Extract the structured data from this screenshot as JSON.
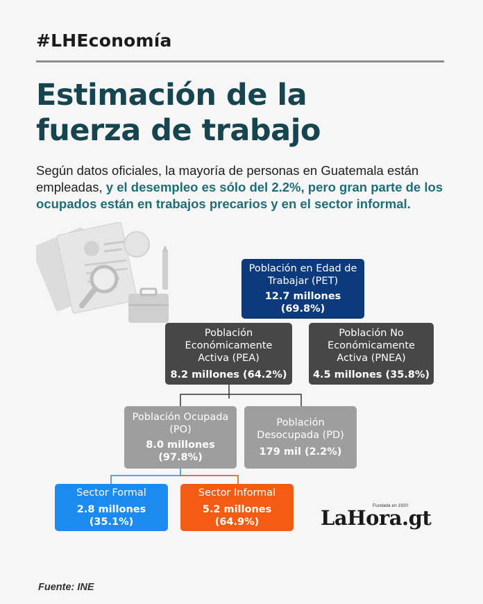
{
  "header": {
    "hashtag": "#LHEconomía",
    "title_line1": "Estimación de la",
    "title_line2": "fuerza de trabajo"
  },
  "intro": {
    "text_plain": "Según datos oficiales, la mayoría de personas en Guatemala están empleadas,",
    "text_highlight": "y el desempleo es sólo del 2.2%, pero gran parte de los ocupados están en trabajos precarios y en el sector informal."
  },
  "colors": {
    "title": "#16444f",
    "highlight": "#1e6e7a",
    "pet": "#0d3a7d",
    "pea": "#474747",
    "po": "#9e9e9e",
    "formal": "#1b8bef",
    "informal": "#f45c14"
  },
  "diagram": {
    "pet": {
      "label_1": "Población en Edad de",
      "label_2": "Trabajar (PET)",
      "value_1": "12.7 millones",
      "value_2": "(69.8%)"
    },
    "pea": {
      "label_1": "Población",
      "label_2": "Económicamente",
      "label_3": "Activa (PEA)",
      "value_1": "8.2 millones (64.2%)"
    },
    "pnea": {
      "label_1": "Población No",
      "label_2": "Económicamente",
      "label_3": "Activa (PNEA)",
      "value_1": "4.5 millones (35.8%)"
    },
    "po": {
      "label_1": "Población Ocupada",
      "label_2": "(PO)",
      "value_1": "8.0 millones",
      "value_2": "(97.8%)"
    },
    "pd": {
      "label_1": "Población",
      "label_2": "Desocupada (PD)",
      "value_1": "179 mil (2.2%)"
    },
    "formal": {
      "label_1": "Sector Formal",
      "value_1": "2.8 millones",
      "value_2": "(35.1%)"
    },
    "informal": {
      "label_1": "Sector Informal",
      "value_1": "5.2 millones",
      "value_2": "(64.9%)"
    }
  },
  "logo": {
    "text": "LaHora.gt",
    "tagline": "Fundada en 1920"
  },
  "source": "Fuente: INE",
  "illustration": {
    "icon": "job-documents-illustration"
  }
}
